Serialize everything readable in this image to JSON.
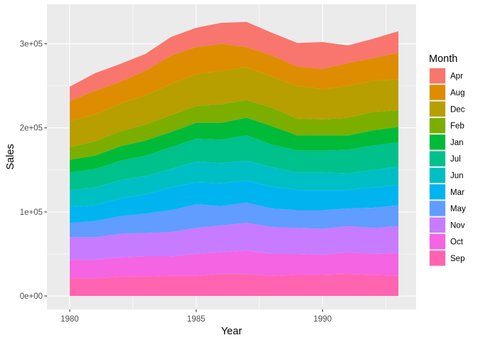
{
  "chart_data": {
    "type": "area",
    "stacked": true,
    "title": "",
    "xlabel": "Year",
    "ylabel": "Sales",
    "x": [
      1980,
      1981,
      1982,
      1983,
      1984,
      1985,
      1986,
      1987,
      1988,
      1989,
      1990,
      1991,
      1992,
      1993
    ],
    "xlim": [
      1979.1,
      1993.7
    ],
    "ylim": [
      -16000,
      347000
    ],
    "x_ticks": [
      1980,
      1985,
      1990
    ],
    "x_tick_labels": [
      "1980",
      "1985",
      "1990"
    ],
    "y_ticks": [
      0,
      100000,
      200000,
      300000
    ],
    "y_tick_labels": [
      "0e+00",
      "1e+05",
      "2e+05",
      "3e+05"
    ],
    "grid": true,
    "panel_background": "#ebebeb",
    "legend": {
      "title": "Month",
      "position": "right"
    },
    "series": [
      {
        "name": "Apr",
        "color": "#F8766D",
        "values": [
          17000,
          21000,
          21000,
          20000,
          22000,
          23000,
          25000,
          30000,
          27000,
          28000,
          32000,
          21000,
          23000,
          26000
        ]
      },
      {
        "name": "Aug",
        "color": "#DE8C00",
        "values": [
          24000,
          28000,
          26000,
          29000,
          34000,
          32000,
          32000,
          24000,
          25000,
          23000,
          24000,
          27000,
          27000,
          31000
        ]
      },
      {
        "name": "Dec",
        "color": "#B79F00",
        "values": [
          31000,
          32000,
          33000,
          35000,
          37000,
          38000,
          40000,
          39000,
          37000,
          39000,
          36000,
          38000,
          37000,
          37000
        ]
      },
      {
        "name": "Feb",
        "color": "#7CAE00",
        "values": [
          15000,
          17000,
          18000,
          19000,
          20000,
          20000,
          22000,
          21000,
          22000,
          20000,
          19000,
          21000,
          22000,
          20000
        ]
      },
      {
        "name": "Jan",
        "color": "#00BA38",
        "values": [
          15000,
          16000,
          17000,
          18000,
          18000,
          19000,
          20000,
          21000,
          22000,
          18000,
          18000,
          17000,
          18000,
          18000
        ]
      },
      {
        "name": "Jul",
        "color": "#00C08B",
        "values": [
          21000,
          22000,
          23000,
          24000,
          26000,
          27000,
          28000,
          30000,
          27000,
          26000,
          26000,
          28000,
          29000,
          29000
        ]
      },
      {
        "name": "Jun",
        "color": "#00BFC4",
        "values": [
          20000,
          21000,
          22000,
          22000,
          22000,
          25000,
          24000,
          24000,
          23000,
          21000,
          21000,
          20000,
          21000,
          22000
        ]
      },
      {
        "name": "Mar",
        "color": "#00B4F0",
        "values": [
          19000,
          19000,
          21000,
          23000,
          27000,
          26000,
          27000,
          26000,
          26000,
          24000,
          24000,
          22000,
          24000,
          24000
        ]
      },
      {
        "name": "May",
        "color": "#619CFF",
        "values": [
          17000,
          19000,
          21000,
          23000,
          26000,
          28000,
          23000,
          24000,
          22000,
          21000,
          22000,
          21000,
          24000,
          25000
        ]
      },
      {
        "name": "Nov",
        "color": "#C77CFF",
        "values": [
          27000,
          27000,
          28000,
          28000,
          29000,
          31000,
          32000,
          33000,
          32000,
          31000,
          31000,
          31000,
          31000,
          32000
        ]
      },
      {
        "name": "Oct",
        "color": "#F564E3",
        "values": [
          22000,
          22000,
          23000,
          24000,
          23000,
          26000,
          26000,
          28000,
          26000,
          25000,
          24000,
          26000,
          25000,
          27000
        ]
      },
      {
        "name": "Sep",
        "color": "#FF64B0",
        "values": [
          21000,
          21000,
          23000,
          23000,
          24000,
          24000,
          26000,
          26000,
          24000,
          25000,
          25000,
          26000,
          25000,
          24000
        ]
      }
    ]
  }
}
